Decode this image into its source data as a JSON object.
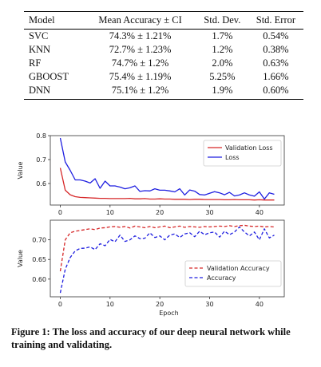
{
  "table": {
    "headers": [
      "Model",
      "Mean Accuracy ± CI",
      "Std. Dev.",
      "Std. Error"
    ],
    "rows": [
      [
        "SVC",
        "74.3% ± 1.21%",
        "1.7%",
        "0.54%"
      ],
      [
        "KNN",
        "72.7% ± 1.23%",
        "1.2%",
        "0.38%"
      ],
      [
        "RF",
        "74.7% ± 1.2%",
        "2.0%",
        "0.63%"
      ],
      [
        "GBOOST",
        "75.4% ± 1.19%",
        "5.25%",
        "1.66%"
      ],
      [
        "DNN",
        "75.1% ± 1.2%",
        "1.9%",
        "0.60%"
      ]
    ]
  },
  "caption": "Figure 1: The loss and accuracy of our deep neural network while training and validating.",
  "chart_data": [
    {
      "type": "line",
      "ylabel": "Value",
      "xlim": [
        -2,
        45
      ],
      "ylim": [
        0.51,
        0.8
      ],
      "xticks": [
        0,
        10,
        20,
        30,
        40
      ],
      "yticks": [
        0.6,
        0.7,
        0.8
      ],
      "legend_position": "top-right",
      "series": [
        {
          "name": "Validation Loss",
          "color": "#d62728",
          "style": "solid",
          "x": [
            0,
            1,
            2,
            3,
            4,
            5,
            6,
            7,
            8,
            9,
            10,
            11,
            12,
            13,
            14,
            15,
            16,
            17,
            18,
            19,
            20,
            21,
            22,
            23,
            24,
            25,
            26,
            27,
            28,
            29,
            30,
            31,
            32,
            33,
            34,
            35,
            36,
            37,
            38,
            39,
            40,
            41,
            42,
            43
          ],
          "y": [
            0.665,
            0.572,
            0.553,
            0.545,
            0.542,
            0.541,
            0.54,
            0.539,
            0.538,
            0.538,
            0.537,
            0.537,
            0.537,
            0.537,
            0.538,
            0.536,
            0.536,
            0.537,
            0.535,
            0.535,
            0.536,
            0.535,
            0.535,
            0.534,
            0.534,
            0.534,
            0.533,
            0.534,
            0.534,
            0.533,
            0.533,
            0.533,
            0.533,
            0.532,
            0.532,
            0.533,
            0.532,
            0.532,
            0.532,
            0.531,
            0.532,
            0.531,
            0.531,
            0.531
          ]
        },
        {
          "name": "Loss",
          "color": "#1f1fe0",
          "style": "solid",
          "x": [
            0,
            1,
            2,
            3,
            4,
            5,
            6,
            7,
            8,
            9,
            10,
            11,
            12,
            13,
            14,
            15,
            16,
            17,
            18,
            19,
            20,
            21,
            22,
            23,
            24,
            25,
            26,
            27,
            28,
            29,
            30,
            31,
            32,
            33,
            34,
            35,
            36,
            37,
            38,
            39,
            40,
            41,
            42,
            43
          ],
          "y": [
            0.79,
            0.69,
            0.655,
            0.615,
            0.615,
            0.61,
            0.602,
            0.62,
            0.58,
            0.61,
            0.59,
            0.59,
            0.585,
            0.578,
            0.582,
            0.59,
            0.567,
            0.57,
            0.569,
            0.578,
            0.572,
            0.572,
            0.569,
            0.565,
            0.578,
            0.552,
            0.573,
            0.568,
            0.554,
            0.552,
            0.559,
            0.566,
            0.561,
            0.553,
            0.563,
            0.548,
            0.552,
            0.561,
            0.552,
            0.547,
            0.565,
            0.535,
            0.561,
            0.555
          ]
        }
      ]
    },
    {
      "type": "line",
      "xlabel": "Epoch",
      "ylabel": "Value",
      "xlim": [
        -2,
        45
      ],
      "ylim": [
        0.555,
        0.75
      ],
      "xticks": [
        0,
        10,
        20,
        30,
        40
      ],
      "yticks": [
        0.6,
        0.65,
        0.7
      ],
      "legend_position": "bottom-right",
      "series": [
        {
          "name": "Validation Accuracy",
          "color": "#d62728",
          "style": "dashed",
          "x": [
            0,
            1,
            2,
            3,
            4,
            5,
            6,
            7,
            8,
            9,
            10,
            11,
            12,
            13,
            14,
            15,
            16,
            17,
            18,
            19,
            20,
            21,
            22,
            23,
            24,
            25,
            26,
            27,
            28,
            29,
            30,
            31,
            32,
            33,
            34,
            35,
            36,
            37,
            38,
            39,
            40,
            41,
            42,
            43
          ],
          "y": [
            0.62,
            0.7,
            0.718,
            0.722,
            0.724,
            0.726,
            0.728,
            0.726,
            0.73,
            0.731,
            0.733,
            0.734,
            0.732,
            0.734,
            0.73,
            0.735,
            0.733,
            0.731,
            0.734,
            0.731,
            0.733,
            0.735,
            0.731,
            0.733,
            0.735,
            0.732,
            0.734,
            0.733,
            0.732,
            0.734,
            0.733,
            0.734,
            0.735,
            0.734,
            0.736,
            0.734,
            0.736,
            0.737,
            0.735,
            0.734,
            0.735,
            0.733,
            0.734,
            0.733
          ]
        },
        {
          "name": "Accuracy",
          "color": "#1f1fe0",
          "style": "dashed",
          "x": [
            0,
            1,
            2,
            3,
            4,
            5,
            6,
            7,
            8,
            9,
            10,
            11,
            12,
            13,
            14,
            15,
            16,
            17,
            18,
            19,
            20,
            21,
            22,
            23,
            24,
            25,
            26,
            27,
            28,
            29,
            30,
            31,
            32,
            33,
            34,
            35,
            36,
            37,
            38,
            39,
            40,
            41,
            42,
            43
          ],
          "y": [
            0.565,
            0.625,
            0.655,
            0.672,
            0.678,
            0.679,
            0.682,
            0.675,
            0.69,
            0.685,
            0.701,
            0.695,
            0.712,
            0.696,
            0.7,
            0.71,
            0.703,
            0.704,
            0.718,
            0.706,
            0.71,
            0.7,
            0.712,
            0.715,
            0.706,
            0.715,
            0.718,
            0.708,
            0.722,
            0.713,
            0.718,
            0.72,
            0.707,
            0.722,
            0.713,
            0.72,
            0.733,
            0.72,
            0.71,
            0.72,
            0.7,
            0.728,
            0.705,
            0.712
          ]
        }
      ]
    }
  ]
}
